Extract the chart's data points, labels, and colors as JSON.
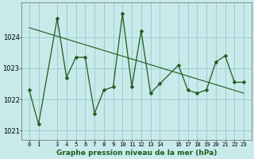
{
  "x": [
    0,
    1,
    3,
    4,
    5,
    6,
    7,
    8,
    9,
    10,
    11,
    12,
    13,
    14,
    16,
    17,
    18,
    19,
    20,
    21,
    22,
    23
  ],
  "y": [
    1022.3,
    1021.2,
    1024.6,
    1022.7,
    1023.35,
    1023.35,
    1021.55,
    1022.3,
    1022.4,
    1024.75,
    1022.4,
    1024.2,
    1022.2,
    1022.5,
    1023.1,
    1022.3,
    1022.2,
    1022.3,
    1023.2,
    1023.4,
    1022.55,
    1022.55
  ],
  "trend_x": [
    0,
    23
  ],
  "trend_y": [
    1024.3,
    1022.2
  ],
  "ylim": [
    1020.7,
    1025.1
  ],
  "xlim": [
    -0.8,
    23.8
  ],
  "yticks": [
    1021,
    1022,
    1023,
    1024
  ],
  "xticks": [
    0,
    1,
    3,
    4,
    5,
    6,
    7,
    8,
    9,
    10,
    11,
    12,
    13,
    14,
    16,
    17,
    18,
    19,
    20,
    21,
    22,
    23
  ],
  "xtick_labels": [
    "0",
    "1",
    "3",
    "4",
    "5",
    "6",
    "7",
    "8",
    "9",
    "10",
    "11",
    "12",
    "13",
    "14",
    "16",
    "17",
    "18",
    "19",
    "20",
    "21",
    "22",
    "23"
  ],
  "xlabel": "Graphe pression niveau de la mer (hPa)",
  "line_color": "#1e5c1e",
  "bg_color": "#c8eaea",
  "grid_color": "#9ecece",
  "marker_size": 2.5,
  "line_width": 0.9,
  "trend_lw": 0.8,
  "xlabel_fontsize": 6.5,
  "tick_fontsize": 5.2,
  "ytick_fontsize": 6.0
}
